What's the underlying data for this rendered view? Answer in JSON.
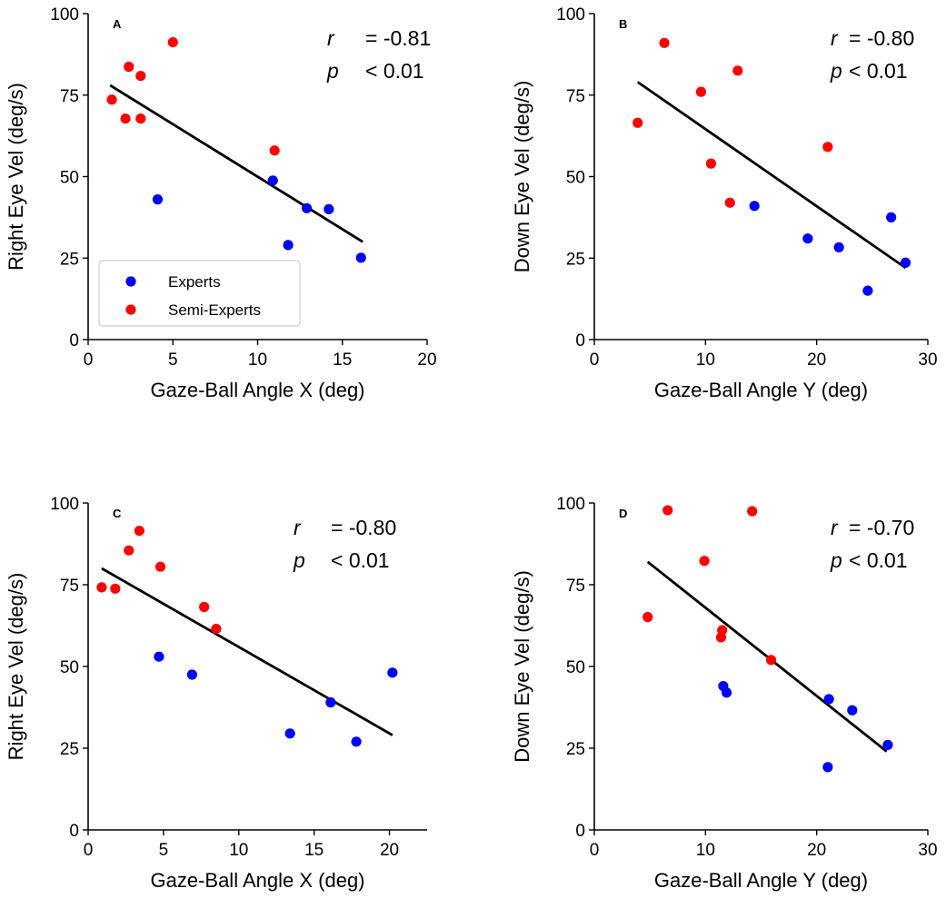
{
  "chart_data": [
    {
      "type": "scatter",
      "panel": "A",
      "xlabel": "Gaze-Ball Angle X (deg)",
      "ylabel": "Right Eye Vel (deg/s)",
      "xlim": [
        0,
        20
      ],
      "ylim": [
        0,
        100
      ],
      "xticks": [
        0,
        5,
        10,
        15,
        20
      ],
      "yticks": [
        0,
        25,
        50,
        75,
        100
      ],
      "stat_r_label": "r",
      "stat_r_value": "= -0.81",
      "stat_p_label": "p",
      "stat_p_value": "< 0.01",
      "series": [
        {
          "name": "Experts",
          "color": "#0000ff",
          "points": [
            [
              4.1,
              43
            ],
            [
              10.9,
              48.8
            ],
            [
              11.8,
              29
            ],
            [
              12.9,
              40.3
            ],
            [
              14.2,
              40
            ],
            [
              16.1,
              25.1
            ]
          ]
        },
        {
          "name": "Semi-Experts",
          "color": "#ff0000",
          "points": [
            [
              1.4,
              73.6
            ],
            [
              2.2,
              67.8
            ],
            [
              2.4,
              83.7
            ],
            [
              3.1,
              67.8
            ],
            [
              3.1,
              80.9
            ],
            [
              5.0,
              91.2
            ],
            [
              11.0,
              58
            ]
          ]
        }
      ],
      "fit": [
        [
          1.3,
          78
        ],
        [
          16.2,
          30
        ]
      ],
      "legend": {
        "position": "lower-left",
        "entries": [
          "Experts",
          "Semi-Experts"
        ]
      }
    },
    {
      "type": "scatter",
      "panel": "B",
      "xlabel": "Gaze-Ball Angle Y (deg)",
      "ylabel": "Down Eye Vel (deg/s)",
      "xlim": [
        0,
        30
      ],
      "ylim": [
        0,
        100
      ],
      "xticks": [
        0,
        10,
        20,
        30
      ],
      "yticks": [
        0,
        25,
        50,
        75,
        100
      ],
      "stat_r_label": "r",
      "stat_r_value": "= -0.80",
      "stat_p_label": "p",
      "stat_p_value": "< 0.01",
      "series": [
        {
          "name": "Experts",
          "color": "#0000ff",
          "points": [
            [
              14.4,
              41
            ],
            [
              19.2,
              31
            ],
            [
              22.0,
              28.3
            ],
            [
              24.6,
              15
            ],
            [
              26.7,
              37.5
            ],
            [
              28.0,
              23.6
            ]
          ]
        },
        {
          "name": "Semi-Experts",
          "color": "#ff0000",
          "points": [
            [
              3.9,
              66.5
            ],
            [
              6.3,
              91
            ],
            [
              9.6,
              76
            ],
            [
              10.5,
              54
            ],
            [
              12.2,
              42
            ],
            [
              12.9,
              82.5
            ],
            [
              21.0,
              59.1
            ]
          ]
        }
      ],
      "fit": [
        [
          3.9,
          79
        ],
        [
          28.0,
          22
        ]
      ]
    },
    {
      "type": "scatter",
      "panel": "C",
      "xlabel": "Gaze-Ball Angle X (deg)",
      "ylabel": "Right Eye Vel (deg/s)",
      "xlim": [
        0,
        22.5
      ],
      "ylim": [
        0,
        100
      ],
      "xticks": [
        0,
        5,
        10,
        15,
        20
      ],
      "yticks": [
        0,
        25,
        50,
        75,
        100
      ],
      "stat_r_label": "r",
      "stat_r_value": "= -0.80",
      "stat_p_label": "p",
      "stat_p_value": "< 0.01",
      "series": [
        {
          "name": "Experts",
          "color": "#0000ff",
          "points": [
            [
              4.7,
              53
            ],
            [
              6.9,
              47.5
            ],
            [
              13.4,
              29.5
            ],
            [
              16.1,
              39
            ],
            [
              17.8,
              27
            ],
            [
              20.2,
              48.1
            ]
          ]
        },
        {
          "name": "Semi-Experts",
          "color": "#ff0000",
          "points": [
            [
              0.9,
              74.2
            ],
            [
              1.8,
              73.8
            ],
            [
              2.7,
              85.5
            ],
            [
              3.4,
              91.5
            ],
            [
              4.8,
              80.5
            ],
            [
              7.7,
              68.2
            ],
            [
              8.5,
              61.5
            ]
          ]
        }
      ],
      "fit": [
        [
          0.9,
          80
        ],
        [
          20.2,
          29
        ]
      ]
    },
    {
      "type": "scatter",
      "panel": "D",
      "xlabel": "Gaze-Ball Angle Y (deg)",
      "ylabel": "Down Eye Vel (deg/s)",
      "xlim": [
        0,
        30
      ],
      "ylim": [
        0,
        100
      ],
      "xticks": [
        0,
        10,
        20,
        30
      ],
      "yticks": [
        0,
        25,
        50,
        75,
        100
      ],
      "stat_r_label": "r",
      "stat_r_value": "= -0.70",
      "stat_p_label": "p",
      "stat_p_value": "< 0.01",
      "series": [
        {
          "name": "Experts",
          "color": "#0000ff",
          "points": [
            [
              11.6,
              44
            ],
            [
              11.9,
              42
            ],
            [
              21.0,
              19.2
            ],
            [
              21.1,
              40
            ],
            [
              23.2,
              36.6
            ],
            [
              26.4,
              26
            ]
          ]
        },
        {
          "name": "Semi-Experts",
          "color": "#ff0000",
          "points": [
            [
              4.8,
              65.1
            ],
            [
              6.6,
              97.8
            ],
            [
              9.9,
              82.3
            ],
            [
              11.4,
              58.9
            ],
            [
              11.5,
              61.1
            ],
            [
              14.2,
              97.5
            ],
            [
              15.9,
              52
            ]
          ]
        }
      ],
      "fit": [
        [
          4.8,
          82
        ],
        [
          26.3,
          24
        ]
      ]
    }
  ]
}
